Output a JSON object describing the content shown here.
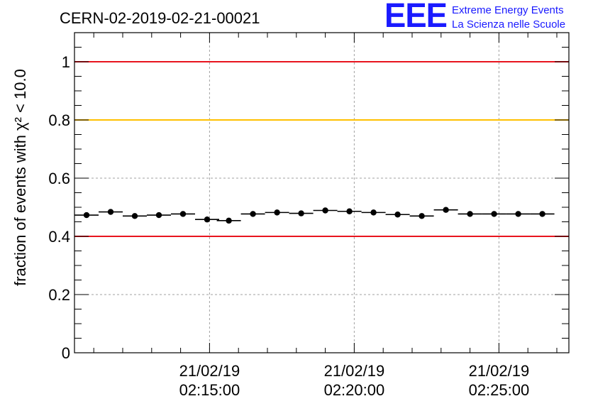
{
  "header": {
    "run_id": "CERN-02-2019-02-21-00021"
  },
  "logo": {
    "mark": "EEE",
    "line1": "Extreme Energy Events",
    "line2": "La Scienza nelle Scuole",
    "color": "#1a1aff"
  },
  "colors": {
    "red_threshold": "#e8141e",
    "yellow_threshold": "#ffc000",
    "grid": "#a0a0a0",
    "marker": "#000000"
  },
  "chart_data": {
    "type": "scatter",
    "title": "CERN-02-2019-02-21-00021",
    "ylabel": "fraction of events with χ² < 10.0",
    "xlabel": "",
    "ylim": [
      0,
      1.1
    ],
    "xlim": [
      "2019-02-21 02:10:20",
      "2019-02-21 02:27:25"
    ],
    "y_ticks": [
      "0",
      "0.2",
      "0.4",
      "0.6",
      "0.8",
      "1"
    ],
    "x_ticks": [
      {
        "time": "2019-02-21 02:15:00",
        "date_label": "21/02/19",
        "time_label": "02:15:00"
      },
      {
        "time": "2019-02-21 02:20:00",
        "date_label": "21/02/19",
        "time_label": "02:20:00"
      },
      {
        "time": "2019-02-21 02:25:00",
        "date_label": "21/02/19",
        "time_label": "02:25:00"
      }
    ],
    "reference_lines": [
      {
        "y": 1.0,
        "color": "#e8141e"
      },
      {
        "y": 0.8,
        "color": "#ffc000"
      },
      {
        "y": 0.4,
        "color": "#e8141e"
      }
    ],
    "grid": true,
    "series": [
      {
        "x": [
          "2019-02-21 02:10:45",
          "2019-02-21 02:11:35",
          "2019-02-21 02:12:25",
          "2019-02-21 02:13:15",
          "2019-02-21 02:14:05",
          "2019-02-21 02:14:55",
          "2019-02-21 02:15:40",
          "2019-02-21 02:16:30",
          "2019-02-21 02:17:20",
          "2019-02-21 02:18:10",
          "2019-02-21 02:19:00",
          "2019-02-21 02:19:50",
          "2019-02-21 02:20:40",
          "2019-02-21 02:21:30",
          "2019-02-21 02:22:20",
          "2019-02-21 02:23:10",
          "2019-02-21 02:24:00",
          "2019-02-21 02:24:50",
          "2019-02-21 02:25:40",
          "2019-02-21 02:26:30"
        ],
        "values": [
          0.473,
          0.484,
          0.47,
          0.473,
          0.477,
          0.458,
          0.454,
          0.477,
          0.482,
          0.479,
          0.489,
          0.486,
          0.482,
          0.475,
          0.47,
          0.491,
          0.477,
          0.477,
          0.477,
          0.477
        ]
      }
    ]
  }
}
